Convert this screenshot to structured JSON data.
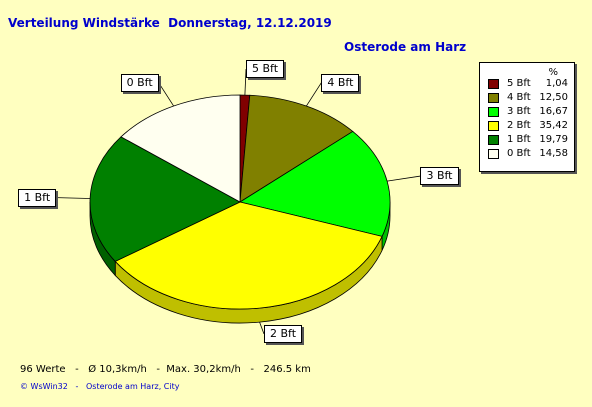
{
  "header": {
    "title": "Verteilung Windstärke  Donnerstag, 12.12.2019",
    "location": "Osterode am Harz"
  },
  "chart_data": {
    "type": "pie",
    "title": "Verteilung Windstärke  Donnerstag, 12.12.2019",
    "subtitle": "Osterode am Harz",
    "legend_position": "top-right",
    "legend_header": "%",
    "categories": [
      "5 Bft",
      "4 Bft",
      "3 Bft",
      "2 Bft",
      "1 Bft",
      "0 Bft"
    ],
    "values": [
      1.04,
      12.5,
      16.67,
      35.42,
      19.79,
      14.58
    ],
    "value_labels": [
      "1,04",
      "12,50",
      "16,67",
      "35,42",
      "19,79",
      "14,58"
    ],
    "colors": [
      "#800000",
      "#808000",
      "#00ff00",
      "#ffff00",
      "#008000",
      "#fffff0"
    ]
  },
  "footer": {
    "stats": "96 Werte   -   Ø 10,3km/h   -  Max. 30,2km/h   -   246.5 km",
    "credit": "© WsWin32   -   Osterode am Harz, City"
  }
}
